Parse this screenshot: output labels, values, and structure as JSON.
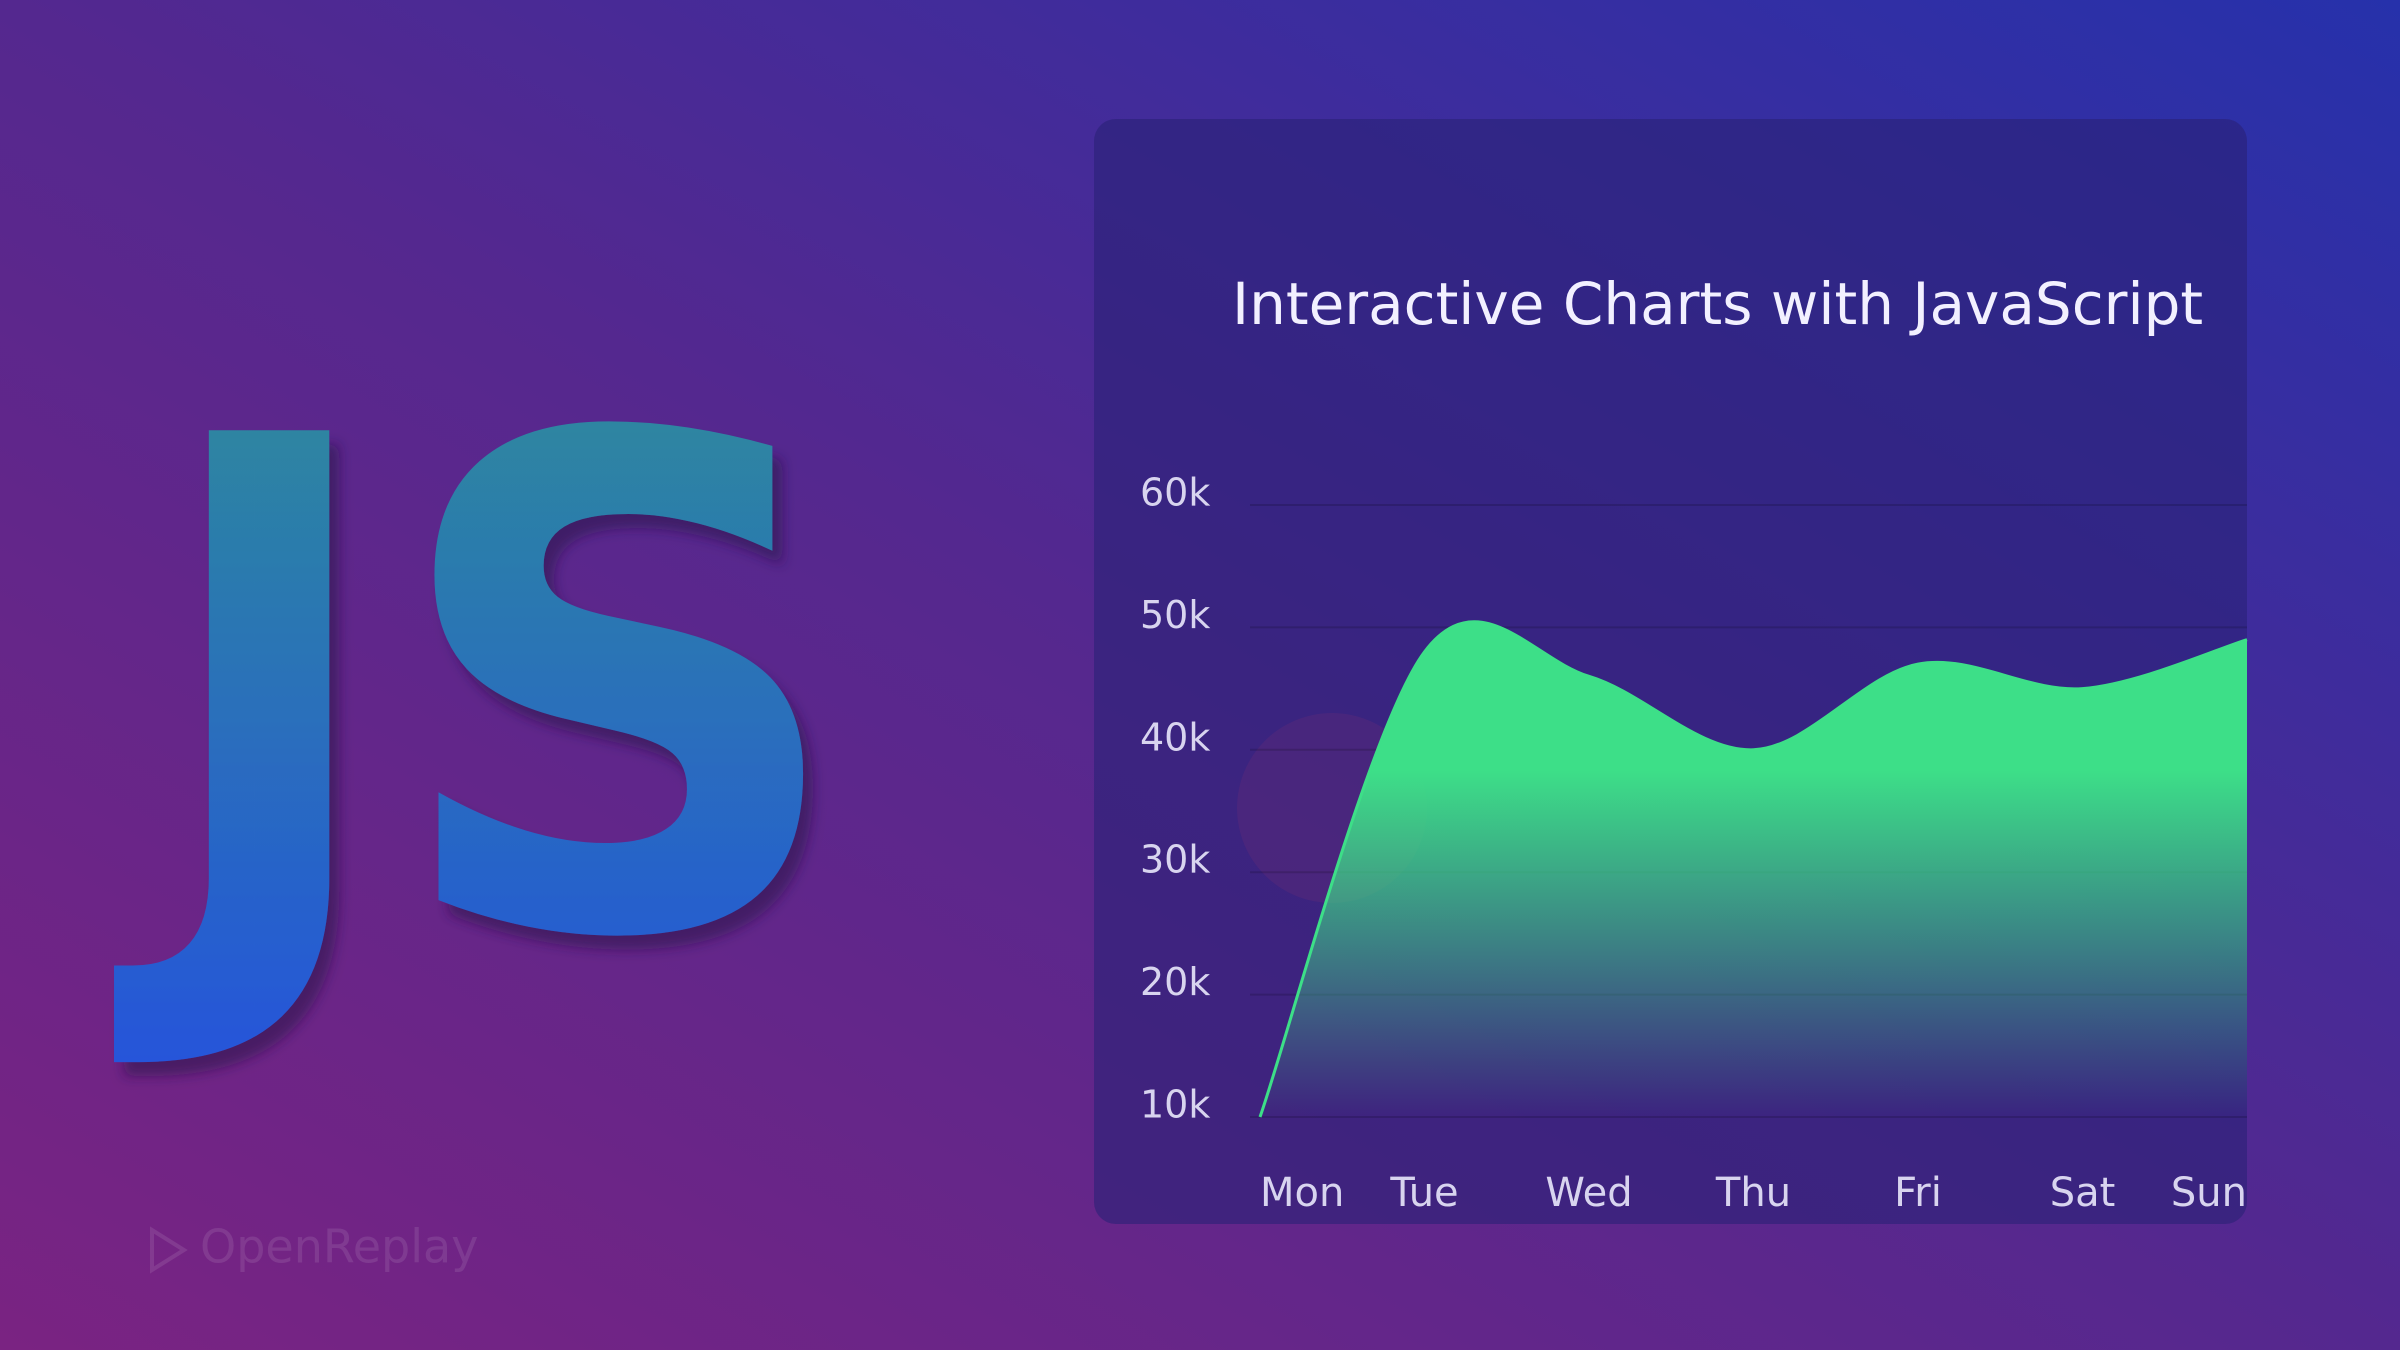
{
  "hero": {
    "logo": "JS",
    "watermark": "OpenReplay"
  },
  "chart_data": {
    "type": "area",
    "title": "Interactive Charts with JavaScript",
    "categories": [
      "Mon",
      "Tue",
      "Wed",
      "Thu",
      "Fri",
      "Sat",
      "Sun"
    ],
    "values": [
      10000,
      48000,
      46000,
      40000,
      47000,
      45000,
      49000
    ],
    "color": "#3ddf88",
    "ylim": [
      10000,
      60000
    ],
    "yticks": [
      {
        "value": 10000,
        "label": "10k"
      },
      {
        "value": 20000,
        "label": "20k"
      },
      {
        "value": 30000,
        "label": "30k"
      },
      {
        "value": 40000,
        "label": "40k"
      },
      {
        "value": 50000,
        "label": "50k"
      },
      {
        "value": 60000,
        "label": "60k"
      }
    ],
    "grid": true
  }
}
